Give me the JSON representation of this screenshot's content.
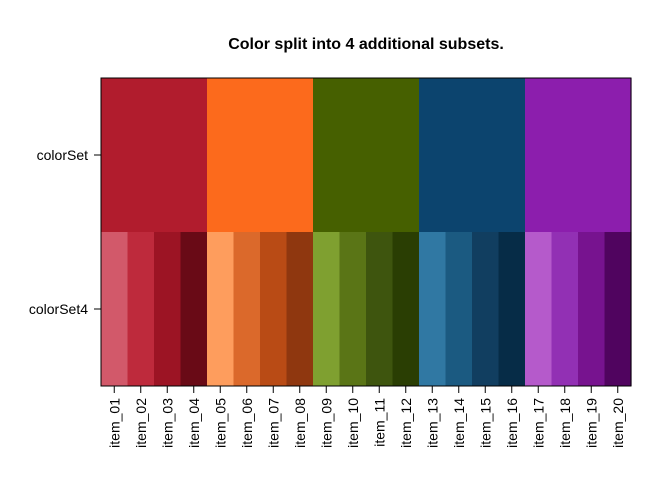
{
  "chart_data": {
    "type": "heatmap",
    "title": "Color split into 4 additional subsets.",
    "xlabel": "",
    "ylabel": "",
    "grid": false,
    "categories": [
      "item_01",
      "item_02",
      "item_03",
      "item_04",
      "item_05",
      "item_06",
      "item_07",
      "item_08",
      "item_09",
      "item_10",
      "item_11",
      "item_12",
      "item_13",
      "item_14",
      "item_15",
      "item_16",
      "item_17",
      "item_18",
      "item_19",
      "item_20"
    ],
    "rows": [
      {
        "name": "colorSet",
        "colors": [
          "#B11C2D",
          "#B11C2D",
          "#B11C2D",
          "#B11C2D",
          "#FC6A1C",
          "#FC6A1C",
          "#FC6A1C",
          "#FC6A1C",
          "#466000",
          "#466000",
          "#466000",
          "#466000",
          "#0C446E",
          "#0C446E",
          "#0C446E",
          "#0C446E",
          "#8C1EAD",
          "#8C1EAD",
          "#8C1EAD",
          "#8C1EAD"
        ]
      },
      {
        "name": "colorSet4",
        "colors": [
          "#D2596A",
          "#BE2A3C",
          "#9C1424",
          "#690A16",
          "#FE9D5D",
          "#DB692B",
          "#B94B15",
          "#8F370F",
          "#7FA030",
          "#5A7516",
          "#3E550E",
          "#2A3E03",
          "#3078A3",
          "#1B5A81",
          "#113E60",
          "#062C47",
          "#B55ACB",
          "#9230B4",
          "#77138F",
          "#50045F"
        ]
      }
    ]
  }
}
